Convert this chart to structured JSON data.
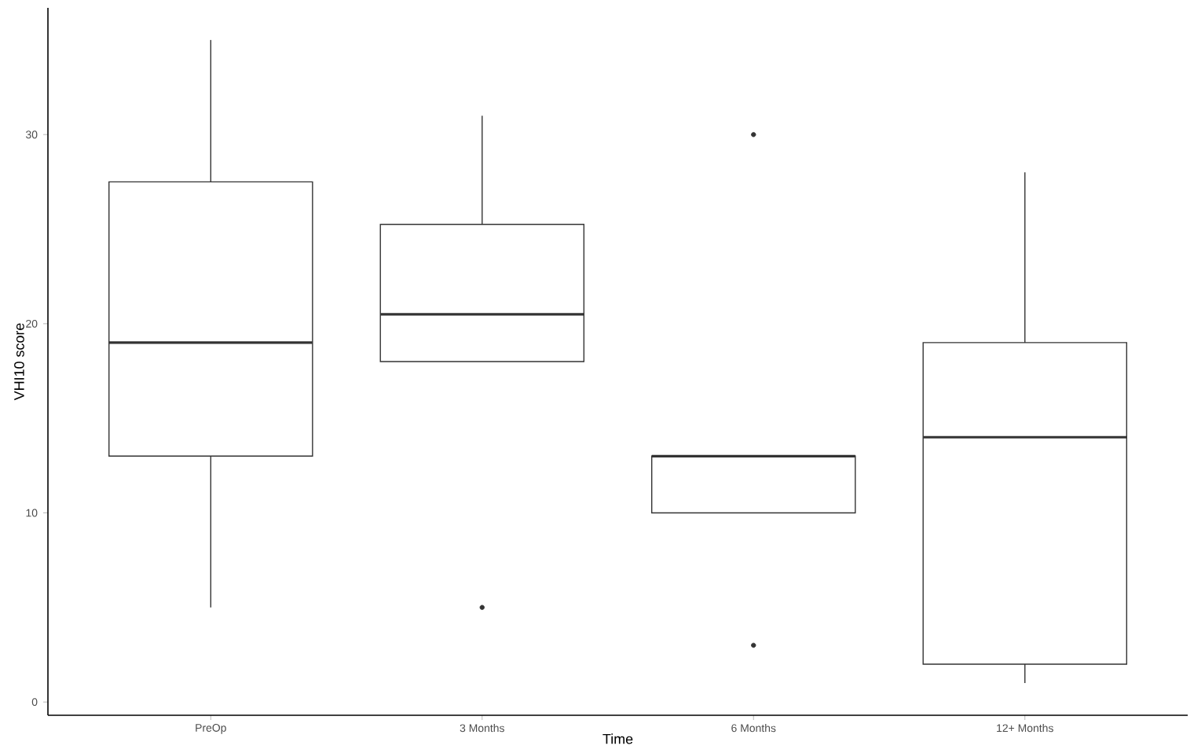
{
  "chart_data": {
    "type": "box",
    "xlabel": "Time",
    "ylabel": "VHI10 score",
    "categories": [
      "PreOp",
      "3 Months",
      "6 Months",
      "12+ Months"
    ],
    "boxes": [
      {
        "low": 5,
        "q1": 13,
        "median": 19,
        "q3": 27.5,
        "high": 35
      },
      {
        "low": 18,
        "q1": 18,
        "median": 20.5,
        "q3": 25.25,
        "high": 31,
        "outliers": [
          5
        ]
      },
      {
        "low": 10,
        "q1": 10,
        "median": 13,
        "q3": 13,
        "high": 13,
        "outliers": [
          30,
          3
        ]
      },
      {
        "low": 1,
        "q1": 2,
        "median": 14,
        "q3": 19,
        "high": 28
      }
    ],
    "color": "#333333",
    "ylim": [
      -0.7,
      36.7
    ],
    "yticks": [
      0,
      10,
      20,
      30
    ]
  }
}
